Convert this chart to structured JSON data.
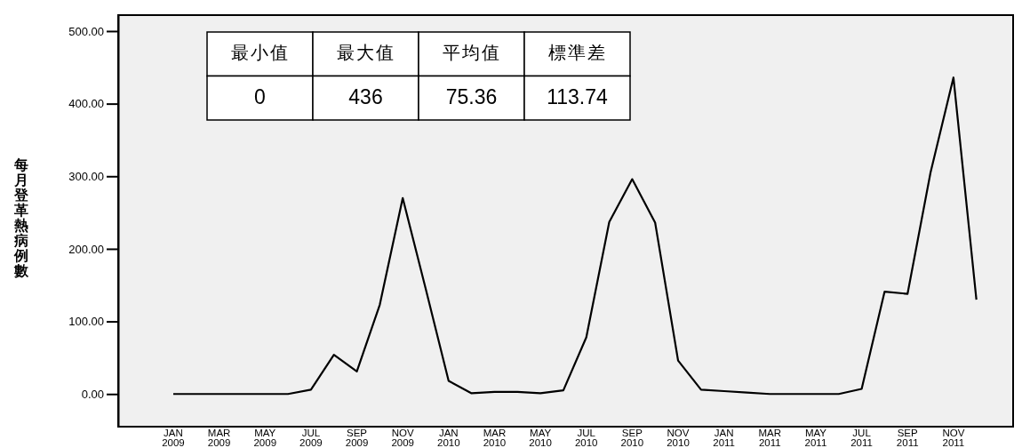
{
  "chart_data": {
    "type": "line",
    "ylabel": "每月登革熱病例數",
    "categories": [
      "JAN 2009",
      null,
      "MAR 2009",
      null,
      "MAY 2009",
      null,
      "JUL 2009",
      null,
      "SEP 2009",
      null,
      "NOV 2009",
      null,
      "JAN 2010",
      null,
      "MAR 2010",
      null,
      "MAY 2010",
      null,
      "JUL 2010",
      null,
      "SEP 2010",
      null,
      "NOV 2010",
      null,
      "JAN 2011",
      null,
      "MAR 2011",
      null,
      "MAY 2011",
      null,
      "JUL 2011",
      null,
      "SEP 2011",
      null,
      "NOV 2011",
      null
    ],
    "series": [
      {
        "color": "#000000",
        "values": [
          0,
          0,
          0,
          0,
          0,
          0,
          6,
          54,
          31,
          123,
          270,
          145,
          18,
          1,
          3,
          3,
          1,
          5,
          78,
          237,
          296,
          236,
          46,
          6,
          4,
          2,
          0,
          0,
          0,
          0,
          7,
          141,
          138,
          305,
          436,
          130
        ]
      }
    ],
    "ylim": [
      -45,
      522
    ],
    "yticks": [
      {
        "value": 0,
        "label": "0.00"
      },
      {
        "value": 100,
        "label": "100.00"
      },
      {
        "value": 200,
        "label": "200.00"
      },
      {
        "value": 300,
        "label": "300.00"
      },
      {
        "value": 400,
        "label": "400.00"
      },
      {
        "value": 500,
        "label": "500.00"
      }
    ],
    "grid": false,
    "marker": "none",
    "line_style": "solid",
    "annotations": [
      "最小值",
      "最大值",
      "平均值",
      "標準差",
      "0",
      "436",
      "75.36",
      "113.74"
    ]
  }
}
